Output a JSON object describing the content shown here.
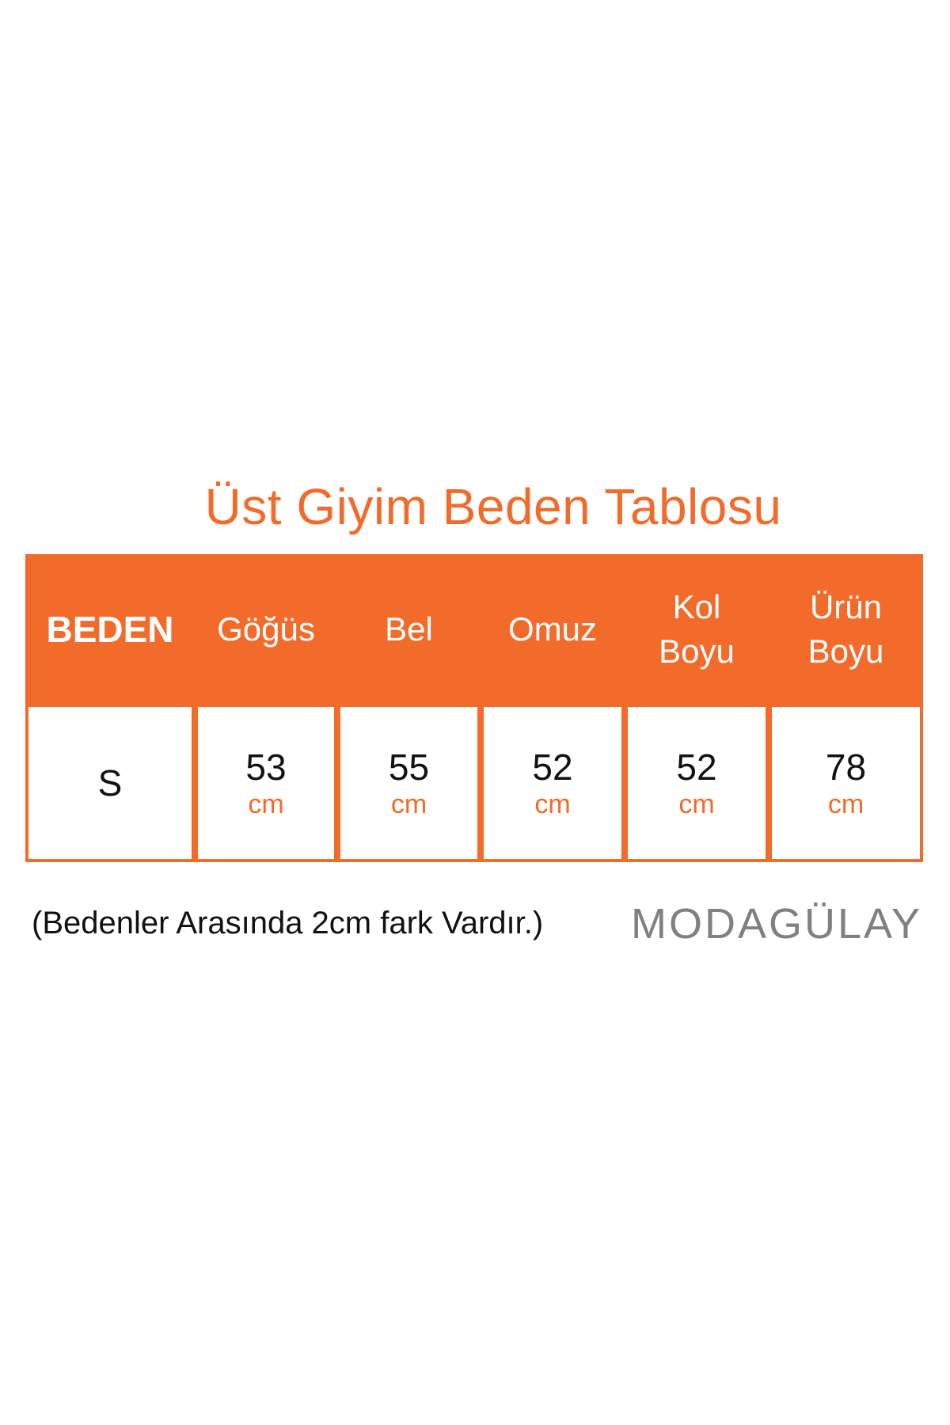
{
  "title": "Üst Giyim Beden Tablosu",
  "table": {
    "headers": [
      "BEDEN",
      "Göğüs",
      "Bel",
      "Omuz",
      "Kol Boyu",
      "Ürün Boyu"
    ],
    "rows": [
      {
        "size": "S",
        "values": [
          "53",
          "55",
          "52",
          "52",
          "78"
        ],
        "unit": "cm"
      }
    ]
  },
  "note": "(Bedenler Arasında 2cm fark Vardır.)",
  "logo": "MODAGÜLAY",
  "colors": {
    "accent": "#f26b2a",
    "logo": "#808080"
  }
}
